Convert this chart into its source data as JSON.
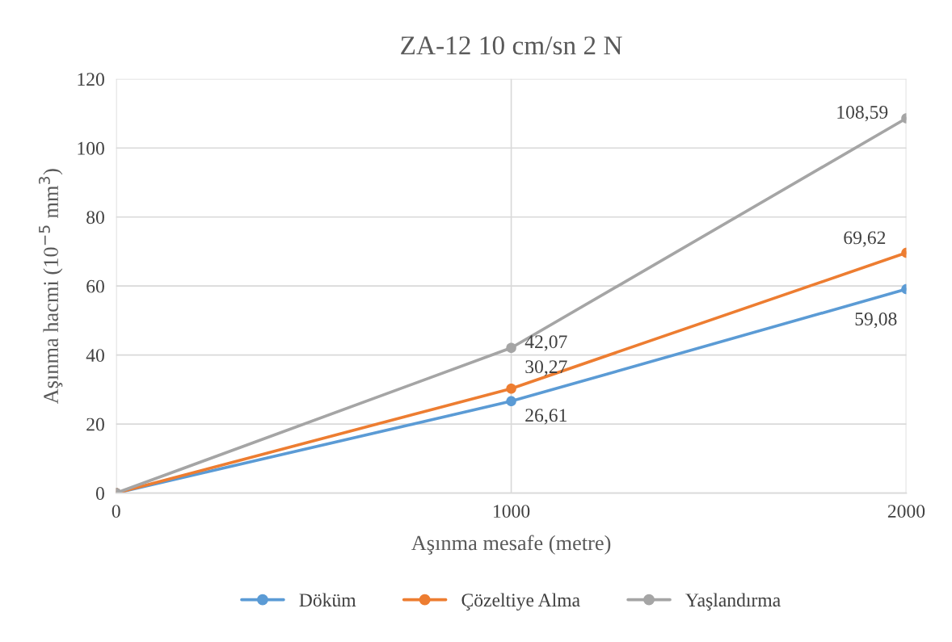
{
  "chart_data": {
    "type": "line",
    "title": "ZA-12 10 cm/sn 2 N",
    "xlabel": "Aşınma mesafe (metre)",
    "ylabel": "Aşınma hacmi (10$^{−5}$ mm$^{3}$)",
    "x": [
      0,
      1000,
      2000
    ],
    "xlim": [
      0,
      2000
    ],
    "xticks": [
      0,
      1000,
      2000
    ],
    "ylim": [
      0,
      120
    ],
    "yticks": [
      0,
      20,
      40,
      60,
      80,
      100,
      120
    ],
    "series": [
      {
        "name": "Döküm",
        "color": "#5b9bd5",
        "values": [
          0,
          26.61,
          59.08
        ],
        "value_labels": [
          null,
          "26,61",
          "59,08"
        ]
      },
      {
        "name": "Çözeltiye Alma",
        "color": "#ed7d31",
        "values": [
          0,
          30.27,
          69.62
        ],
        "value_labels": [
          null,
          "30,27",
          "69,62"
        ]
      },
      {
        "name": "Yaşlandırma",
        "color": "#a5a5a5",
        "values": [
          0,
          42.07,
          108.59
        ],
        "value_labels": [
          null,
          "42,07",
          "108,59"
        ]
      }
    ],
    "grid": true,
    "legend": "bottom",
    "marker": "circle",
    "line_style": "solid"
  }
}
